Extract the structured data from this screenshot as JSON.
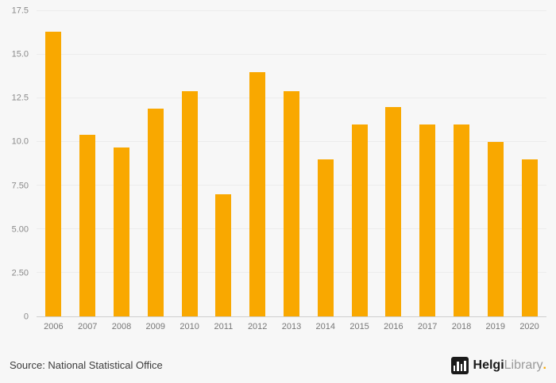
{
  "chart_data": {
    "type": "bar",
    "categories": [
      "2006",
      "2007",
      "2008",
      "2009",
      "2010",
      "2011",
      "2012",
      "2013",
      "2014",
      "2015",
      "2016",
      "2017",
      "2018",
      "2019",
      "2020"
    ],
    "values": [
      16.3,
      10.4,
      9.7,
      11.9,
      12.9,
      7.0,
      14.0,
      12.9,
      9.0,
      11.0,
      12.0,
      11.0,
      11.0,
      10.0,
      9.0
    ],
    "title": "",
    "xlabel": "",
    "ylabel": "",
    "ylim": [
      0,
      17.5
    ],
    "yticks": [
      0,
      2.5,
      5,
      7.5,
      10,
      12.5,
      15,
      17.5
    ],
    "ytick_labels": [
      "0",
      "2.50",
      "5.00",
      "7.50",
      "10.0",
      "12.5",
      "15.0",
      "17.5"
    ],
    "grid": true,
    "legend": "none",
    "bar_color": "#F9A800"
  },
  "footer": {
    "source": "Source: National Statistical Office",
    "logo": {
      "brand_bold": "Helgi",
      "brand_light": "Library",
      "dot": ".",
      "dot_color": "#F9A800"
    }
  }
}
